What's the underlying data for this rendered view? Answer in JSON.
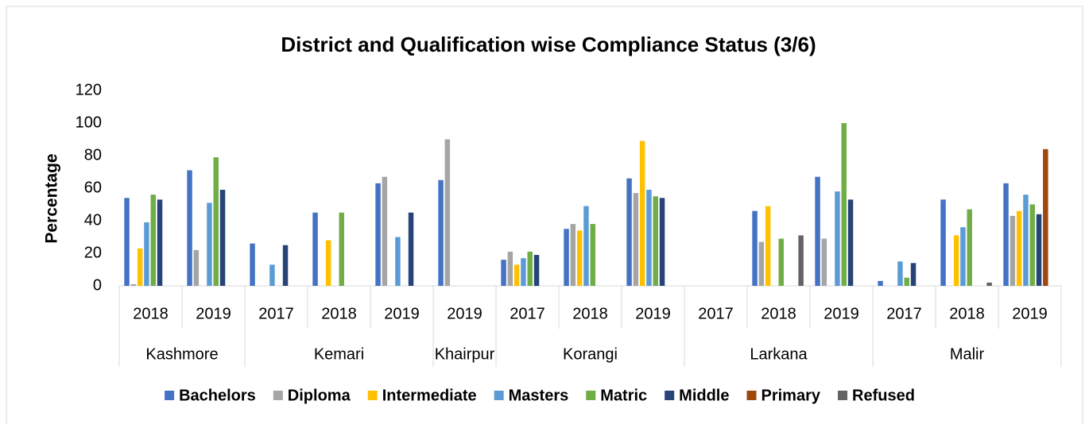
{
  "chart_data": {
    "type": "bar",
    "title": "District and Qualification wise Compliance Status (3/6)",
    "y_label": "Percentage",
    "groups": [
      {
        "name": "Kashmore",
        "categories": [
          "2018",
          "2019"
        ]
      },
      {
        "name": "Kemari",
        "categories": [
          "2017",
          "2018",
          "2019"
        ]
      },
      {
        "name": "Khairpur",
        "categories": [
          "2019"
        ]
      },
      {
        "name": "Korangi",
        "categories": [
          "2017",
          "2018",
          "2019"
        ]
      },
      {
        "name": "Larkana",
        "categories": [
          "2017",
          "2018",
          "2019"
        ]
      },
      {
        "name": "Malir",
        "categories": [
          "2017",
          "2018",
          "2019"
        ]
      }
    ],
    "series": [
      {
        "name": "Bachelors",
        "color": "#4472c4",
        "values": [
          54,
          71,
          26,
          45,
          63,
          65,
          16,
          35,
          66,
          0,
          46,
          67,
          3,
          53,
          63
        ]
      },
      {
        "name": "Diploma",
        "color": "#a5a5a5",
        "values": [
          1,
          22,
          0,
          0,
          67,
          90,
          21,
          38,
          57,
          0,
          27,
          29,
          0,
          0,
          43
        ]
      },
      {
        "name": "Intermediate",
        "color": "#ffc000",
        "values": [
          23,
          0,
          0,
          28,
          0,
          0,
          13,
          34,
          89,
          0,
          49,
          0,
          0,
          31,
          46
        ]
      },
      {
        "name": "Masters",
        "color": "#5b9bd5",
        "values": [
          39,
          51,
          13,
          0,
          30,
          0,
          17,
          49,
          59,
          0,
          0,
          58,
          15,
          36,
          56
        ]
      },
      {
        "name": "Matric",
        "color": "#70ad47",
        "values": [
          56,
          79,
          0,
          45,
          0,
          0,
          21,
          38,
          55,
          0,
          29,
          100,
          5,
          47,
          50
        ]
      },
      {
        "name": "Middle",
        "color": "#264478",
        "values": [
          53,
          59,
          25,
          0,
          45,
          0,
          19,
          0,
          54,
          0,
          0,
          53,
          14,
          0,
          44
        ]
      },
      {
        "name": "Primary",
        "color": "#9e480e",
        "values": [
          0,
          0,
          0,
          0,
          0,
          0,
          0,
          0,
          0,
          0,
          0,
          0,
          0,
          0,
          84
        ]
      },
      {
        "name": "Refused",
        "color": "#636363",
        "values": [
          0,
          0,
          0,
          0,
          0,
          0,
          0,
          0,
          0,
          0,
          31,
          0,
          0,
          2,
          0
        ]
      }
    ],
    "ylim": [
      0,
      120
    ],
    "yticks": [
      0,
      20,
      40,
      60,
      80,
      100,
      120
    ],
    "grid": false,
    "legend": "bottom"
  }
}
